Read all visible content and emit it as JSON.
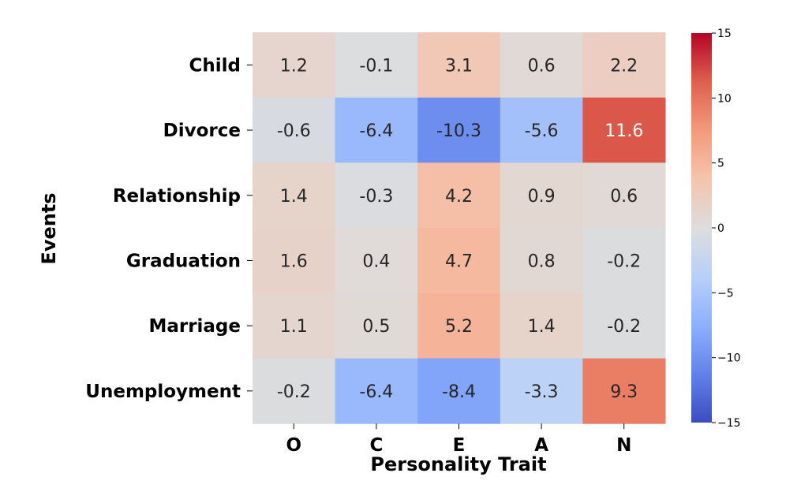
{
  "chart_data": {
    "type": "heatmap",
    "xlabel": "Personality Trait",
    "ylabel": "Events",
    "columns": [
      "O",
      "C",
      "E",
      "A",
      "N"
    ],
    "rows": [
      "Child",
      "Divorce",
      "Relationship",
      "Graduation",
      "Marriage",
      "Unemployment"
    ],
    "values": [
      [
        1.2,
        -0.1,
        3.1,
        0.6,
        2.2
      ],
      [
        -0.6,
        -6.4,
        -10.3,
        -5.6,
        11.6
      ],
      [
        1.4,
        -0.3,
        4.2,
        0.9,
        0.6
      ],
      [
        1.6,
        0.4,
        4.7,
        0.8,
        -0.2
      ],
      [
        1.1,
        0.5,
        5.2,
        1.4,
        -0.2
      ],
      [
        -0.2,
        -6.4,
        -8.4,
        -3.3,
        9.3
      ]
    ],
    "colormap": "coolwarm",
    "vmin": -15,
    "vmax": 15,
    "colorbar_ticks": [
      15,
      10,
      5,
      0,
      -5,
      -10,
      -15
    ],
    "colorbar_tick_labels": [
      "15",
      "10",
      "5",
      "0",
      "−5",
      "−10",
      "−15"
    ]
  }
}
